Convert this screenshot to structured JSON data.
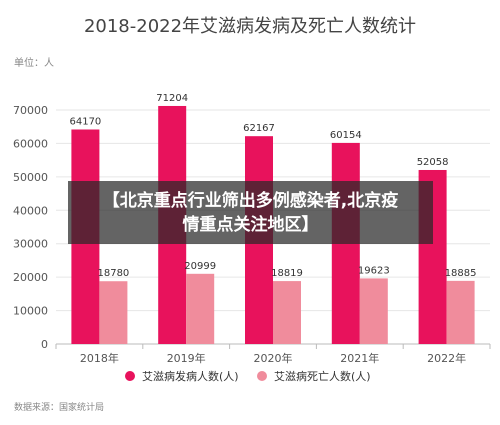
{
  "colors": {
    "infected": "#e8125c",
    "deaths": "#f08c9c",
    "axis_text": "#555555",
    "title_text": "#444444",
    "grid": "#e6e6e6"
  },
  "chart_data": {
    "type": "bar",
    "title": "2018-2022年艾滋病发病及死亡人数统计",
    "unit_label": "单位：人",
    "categories": [
      "2018年",
      "2019年",
      "2020年",
      "2021年",
      "2022年"
    ],
    "series": [
      {
        "name": "艾滋病发病人数(人)",
        "values": [
          64170,
          71204,
          62167,
          60154,
          52058
        ],
        "color": "#e8125c"
      },
      {
        "name": "艾滋病死亡人数(人)",
        "values": [
          18780,
          20999,
          18819,
          19623,
          18885
        ],
        "color": "#f08c9c"
      }
    ],
    "ylim": [
      0,
      70000
    ],
    "yticks": [
      0,
      10000,
      20000,
      30000,
      40000,
      50000,
      60000,
      70000
    ],
    "grid": true,
    "legend_position": "bottom",
    "source": "数据来源：国家统计局"
  },
  "overlay_caption": "【北京重点行业筛出多例感染者,北京疫情重点关注地区】"
}
